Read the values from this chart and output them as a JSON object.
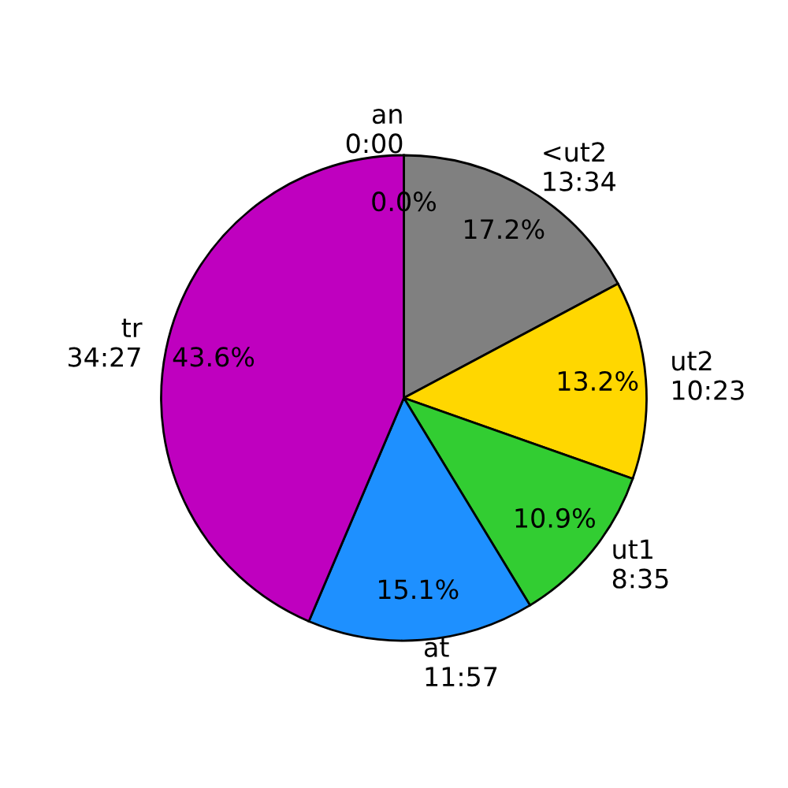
{
  "chart_data": {
    "type": "pie",
    "categories": [
      "an\n0:00",
      "<ut2\n13:34",
      "ut2\n10:23",
      "ut1\n8:35",
      "at\n11:57",
      "tr\n34:27"
    ],
    "values": [
      0.0,
      17.2,
      13.2,
      10.9,
      15.1,
      43.6
    ],
    "colors": [
      "#ff0000",
      "#808080",
      "#ffd700",
      "#32cd32",
      "#1e90ff",
      "#bf00bf"
    ],
    "value_labels": [
      "0.0%",
      "17.2%",
      "13.2%",
      "10.9%",
      "15.1%",
      "43.6%"
    ]
  }
}
